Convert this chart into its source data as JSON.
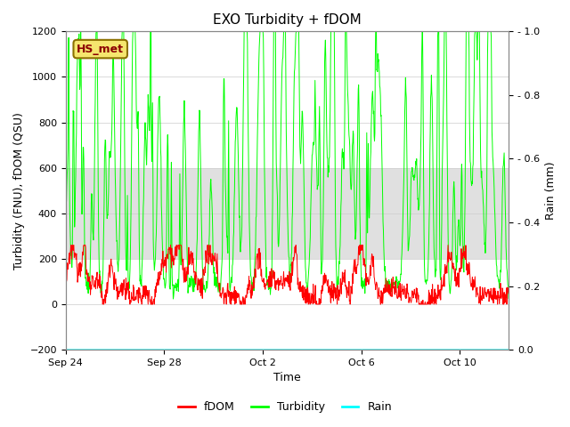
{
  "title": "EXO Turbidity + fDOM",
  "xlabel": "Time",
  "ylabel_left": "Turbidity (FNU), fDOM (QSU)",
  "ylabel_right": "Rain (mm)",
  "ylim_left": [
    -200,
    1200
  ],
  "ylim_right": [
    0.0,
    1.0
  ],
  "yticks_left": [
    -200,
    0,
    200,
    400,
    600,
    800,
    1000,
    1200
  ],
  "yticks_right": [
    0.0,
    0.2,
    0.4,
    0.6,
    0.8,
    1.0
  ],
  "shade_band": [
    200,
    600
  ],
  "shade_color": "#e0e0e0",
  "hs_met_label": "HS_met",
  "hs_met_box_facecolor": "#f5e66e",
  "hs_met_box_edgecolor": "#8B7000",
  "hs_met_text_color": "#8B0000",
  "fdom_color": "red",
  "turbidity_color": "#00ff00",
  "rain_color": "cyan",
  "rain_value": -200,
  "legend_entries": [
    "fDOM",
    "Turbidity",
    "Rain"
  ],
  "x_tick_labels": [
    "Sep 24",
    "Sep 28",
    "Oct 2",
    "Oct 6",
    "Oct 10"
  ],
  "background_color": "white",
  "figsize": [
    6.4,
    4.8
  ],
  "dpi": 100
}
